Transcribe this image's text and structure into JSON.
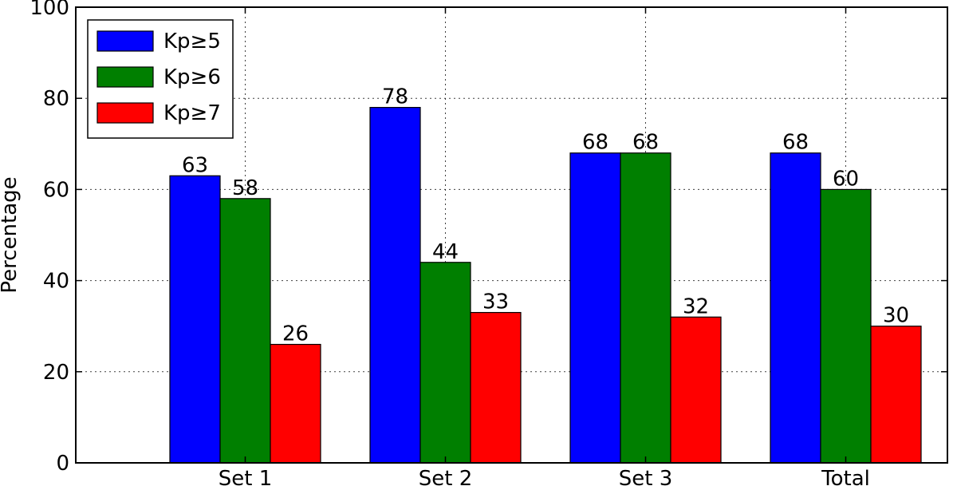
{
  "chart_data": {
    "type": "bar",
    "categories": [
      "Set 1",
      "Set 2",
      "Set 3",
      "Total"
    ],
    "series": [
      {
        "name": "Kp≥5",
        "color": "#0000ff",
        "values": [
          63,
          78,
          68,
          68
        ]
      },
      {
        "name": "Kp≥6",
        "color": "#007f00",
        "values": [
          58,
          44,
          68,
          60
        ]
      },
      {
        "name": "Kp≥7",
        "color": "#ff0000",
        "values": [
          26,
          33,
          32,
          30
        ]
      }
    ],
    "data_labels": [
      [
        "63",
        "78",
        "68",
        "68"
      ],
      [
        "58",
        "44",
        "68",
        "60"
      ],
      [
        "26",
        "33",
        "32",
        "30"
      ]
    ],
    "ylabel": "Percentage",
    "ylim": [
      0,
      100
    ],
    "yticks": [
      0,
      20,
      40,
      60,
      80,
      100
    ],
    "ytick_labels": [
      "0",
      "20",
      "40",
      "60",
      "80",
      "100"
    ],
    "grid": true,
    "legend_position": "top-left"
  }
}
